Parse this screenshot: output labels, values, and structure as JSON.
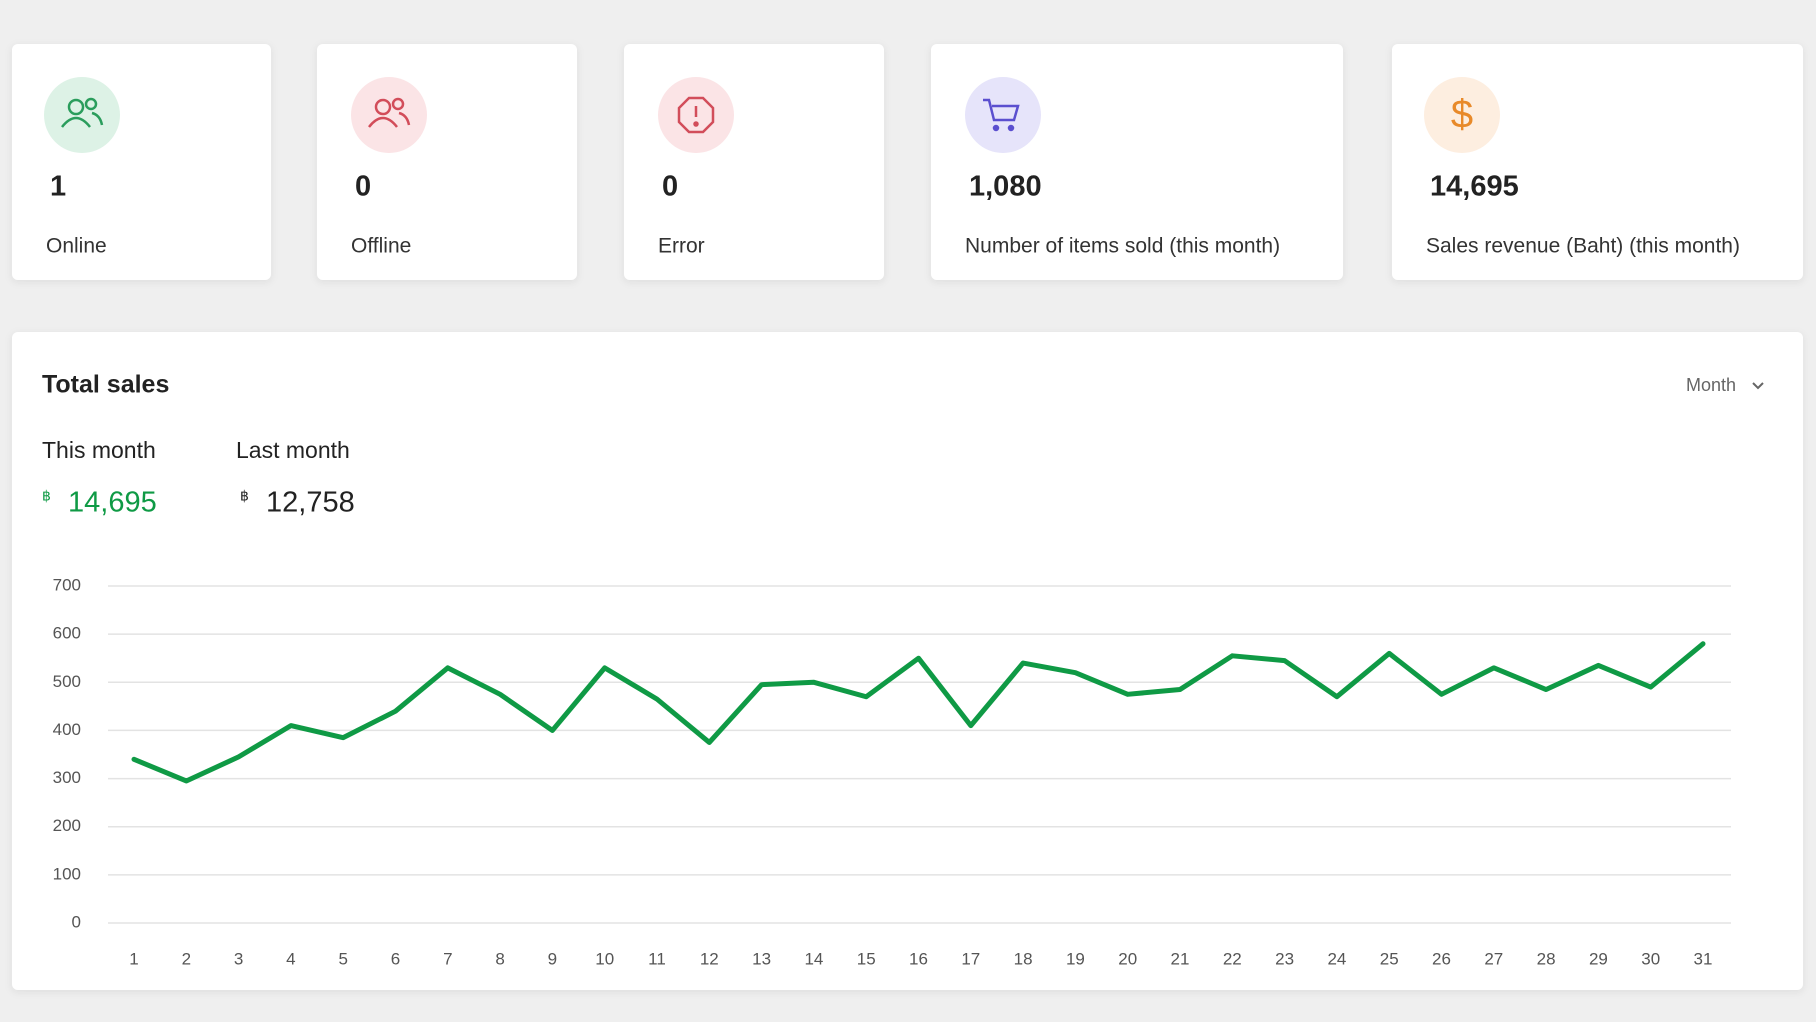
{
  "cards": [
    {
      "value": "1",
      "label": "Online"
    },
    {
      "value": "0",
      "label": "Offline"
    },
    {
      "value": "0",
      "label": "Error"
    },
    {
      "value": "1,080",
      "label": "Number of items sold (this month)"
    },
    {
      "value": "14,695",
      "label": "Sales revenue (Baht) (this month)"
    }
  ],
  "sales": {
    "title": "Total sales",
    "period": "Month",
    "this_month": {
      "label": "This month",
      "currency": "฿",
      "value": "14,695"
    },
    "last_month": {
      "label": "Last month",
      "currency": "฿",
      "value": "12,758"
    }
  },
  "chart_data": {
    "type": "line",
    "categories": [
      "1",
      "2",
      "3",
      "4",
      "5",
      "6",
      "7",
      "8",
      "9",
      "10",
      "11",
      "12",
      "13",
      "14",
      "15",
      "16",
      "17",
      "18",
      "19",
      "20",
      "21",
      "22",
      "23",
      "24",
      "25",
      "26",
      "27",
      "28",
      "29",
      "30",
      "31"
    ],
    "values": [
      340,
      295,
      345,
      410,
      385,
      440,
      530,
      475,
      400,
      530,
      465,
      375,
      495,
      500,
      470,
      550,
      410,
      540,
      520,
      475,
      485,
      555,
      545,
      470,
      560,
      475,
      530,
      485,
      535,
      490,
      580
    ],
    "color": "#0f9a45",
    "ylim": [
      0,
      700
    ],
    "yticks": [
      0,
      100,
      200,
      300,
      400,
      500,
      600,
      700
    ],
    "grid": true
  }
}
